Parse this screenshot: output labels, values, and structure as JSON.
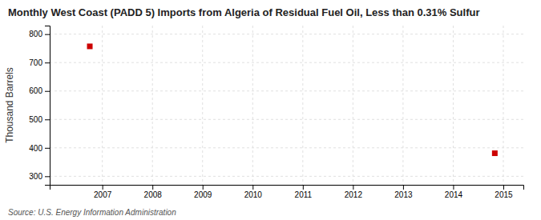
{
  "chart_data": {
    "type": "scatter",
    "title": "Monthly West Coast (PADD 5) Imports from Algeria of Residual Fuel Oil, Less than 0.31% Sulfur",
    "ylabel": "Thousand Barrels",
    "source": "Source: U.S. Energy Information Administration",
    "x": [
      2006.75,
      2014.83
    ],
    "values": [
      757,
      381
    ],
    "color": "#cc0000",
    "marker": "square",
    "xlim": [
      2005.95,
      2015.4
    ],
    "ylim": [
      270,
      830
    ],
    "xticks": [
      2007,
      2008,
      2009,
      2010,
      2011,
      2012,
      2013,
      2014,
      2015
    ],
    "yticks": [
      300,
      400,
      500,
      600,
      700,
      800
    ],
    "grid": true
  }
}
